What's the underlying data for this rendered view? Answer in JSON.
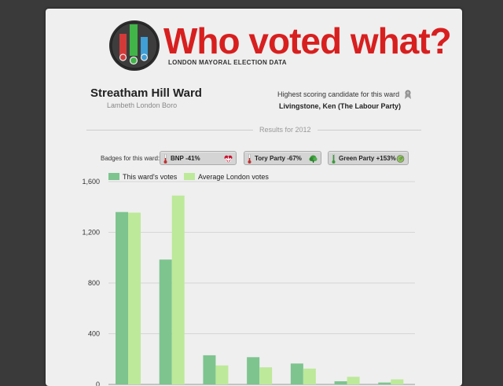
{
  "header": {
    "title": "Who voted what?",
    "subtitle": "LONDON MAYORAL ELECTION DATA"
  },
  "ward": {
    "name": "Streatham Hill Ward",
    "borough": "Lambeth London Boro"
  },
  "top_candidate": {
    "label": "Highest scoring candidate for this ward",
    "name": "Livingstone, Ken (The Labour Party)"
  },
  "results_label": "Results for 2012",
  "badges_label": "Badges for this ward:",
  "badges": [
    {
      "text": "BNP -41%",
      "icon": "heart-flag-icon",
      "trend": "down",
      "color": "#c03030"
    },
    {
      "text": "Tory Party -67%",
      "icon": "tree-icon",
      "trend": "down",
      "color": "#c03030"
    },
    {
      "text": "Green Party +153%",
      "icon": "leaf-icon",
      "trend": "up",
      "color": "#3a9a3a"
    }
  ],
  "colors": {
    "title_red": "#d81f1f",
    "ward_series": "#7ec48f",
    "average_series": "#bde99a"
  },
  "chart_data": {
    "type": "bar",
    "title": "",
    "xlabel": "",
    "ylabel": "",
    "ylim": [
      0,
      1600
    ],
    "yticks": [
      0,
      400,
      800,
      1200,
      1600
    ],
    "ytick_labels": [
      "0",
      "400",
      "800",
      "1,200",
      "1,600"
    ],
    "grid": true,
    "legend_position": "top-left",
    "categories": [
      "",
      "",
      "",
      "",
      "",
      "",
      ""
    ],
    "series": [
      {
        "name": "This ward's votes",
        "color": "#7ec48f",
        "values": [
          1360,
          985,
          230,
          215,
          165,
          25,
          15
        ]
      },
      {
        "name": "Average London votes",
        "color": "#bde99a",
        "values": [
          1355,
          1490,
          150,
          135,
          125,
          60,
          40
        ]
      }
    ]
  }
}
